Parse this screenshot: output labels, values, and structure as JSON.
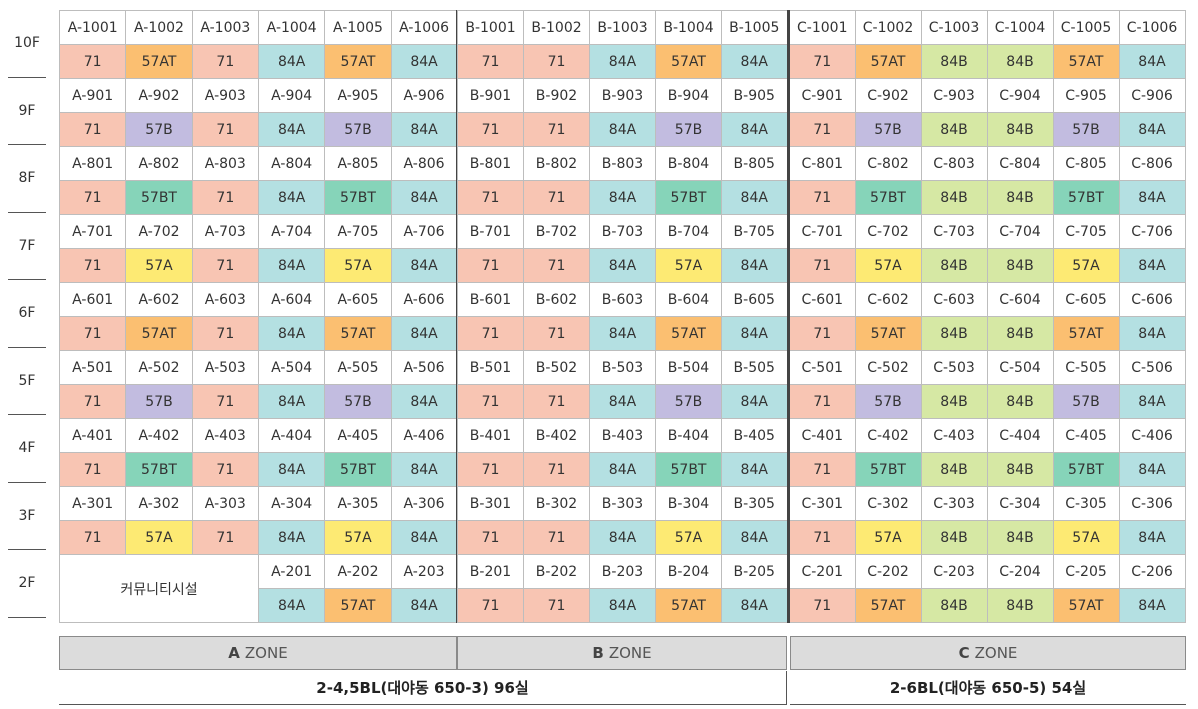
{
  "floors": [
    "10F",
    "9F",
    "8F",
    "7F",
    "6F",
    "5F",
    "4F",
    "3F",
    "2F"
  ],
  "community_label": "커뮤니티시설",
  "colors": {
    "71": "#f8c5b3",
    "57AT": "#fbbf71",
    "84A": "#b4e0e2",
    "84B": "#d6e8a4",
    "57B": "#c2bce0",
    "57BT": "#86d4b9",
    "57A": "#fdea73"
  },
  "zones": [
    {
      "key": "A",
      "types": [
        "71",
        "57@",
        "71",
        "84A",
        "57@",
        "84A"
      ],
      "floor2_types": [
        "84A",
        "57AT",
        "84A"
      ]
    },
    {
      "key": "B",
      "types": [
        "71",
        "71",
        "84A",
        "57@",
        "84A"
      ],
      "floor2_types": [
        "71",
        "71",
        "84A",
        "57AT",
        "84A"
      ]
    },
    {
      "key": "C",
      "types": [
        "71",
        "57@",
        "84B",
        "84B",
        "57@",
        "84A"
      ],
      "floor2_types": [
        "71",
        "57AT",
        "84B",
        "84B",
        "57AT",
        "84A"
      ]
    }
  ],
  "floor_variant": {
    "10": "57AT",
    "9": "57B",
    "8": "57BT",
    "7": "57A",
    "6": "57AT",
    "5": "57B",
    "4": "57BT",
    "3": "57A"
  },
  "zone_bars": [
    {
      "letter": "A",
      "word": "ZONE"
    },
    {
      "letter": "B",
      "word": "ZONE"
    },
    {
      "letter": "C",
      "word": "ZONE"
    }
  ],
  "blocks": {
    "ab": "2-4,5BL(대야동 650-3) 96실",
    "c": "2-6BL(대야동 650-5) 54실"
  }
}
